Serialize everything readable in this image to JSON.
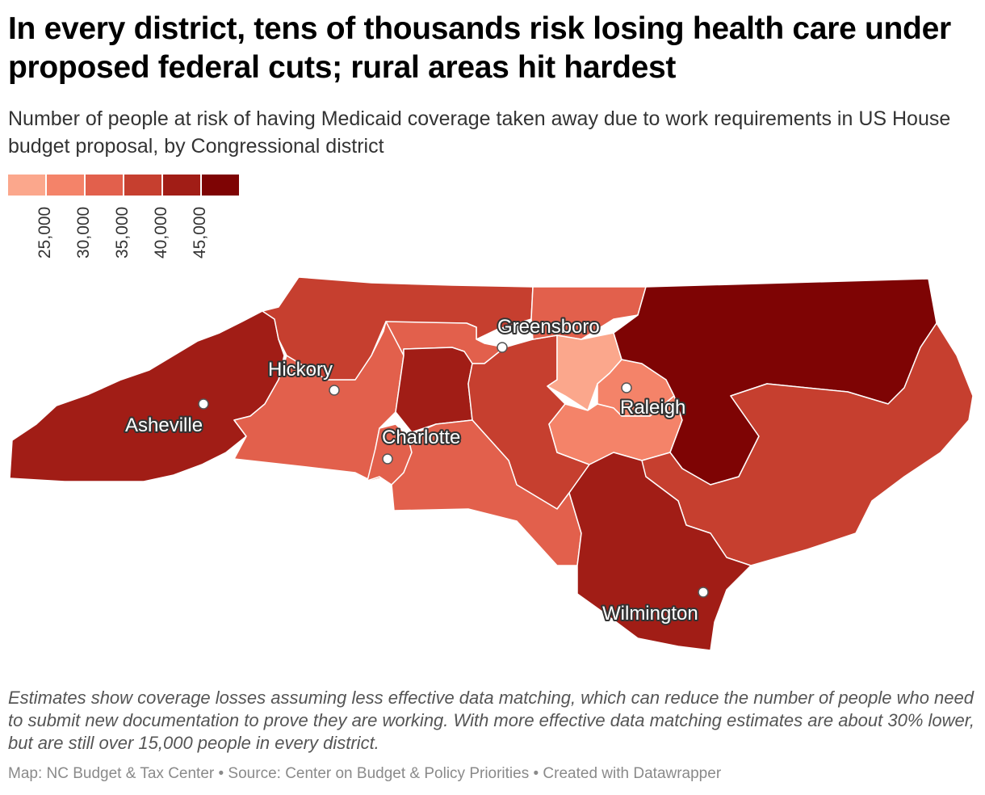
{
  "headline": "In every district, tens of thousands risk losing health care under proposed federal cuts; rural areas hit hardest",
  "subtitle": "Number of people at risk of having Medicaid coverage taken away due to work requirements in US House budget proposal, by Congressional district",
  "legend": {
    "colors": [
      "#fba78c",
      "#f48369",
      "#e2604c",
      "#c63f2f",
      "#a11d16",
      "#7e0404"
    ],
    "ticks": [
      "25,000",
      "30,000",
      "35,000",
      "40,000",
      "45,000"
    ]
  },
  "map": {
    "colors": {
      "bin1": "#fba78c",
      "bin2": "#f48369",
      "bin3": "#e2604c",
      "bin4": "#c63f2f",
      "bin5": "#a11d16",
      "bin6": "#7e0404"
    },
    "cities": [
      {
        "name": "Greensboro"
      },
      {
        "name": "Hickory"
      },
      {
        "name": "Asheville"
      },
      {
        "name": "Charlotte"
      },
      {
        "name": "Raleigh"
      },
      {
        "name": "Wilmington"
      }
    ]
  },
  "notes": "Estimates show coverage losses assuming less effective data matching, which can reduce the number of people who need to submit new documentation to prove they are working. With more effective data matching estimates are about 30% lower, but are still over 15,000 people in every district.",
  "byline": "Map: NC Budget & Tax Center • Source: Center on Budget & Policy Priorities • Created with Datawrapper"
}
